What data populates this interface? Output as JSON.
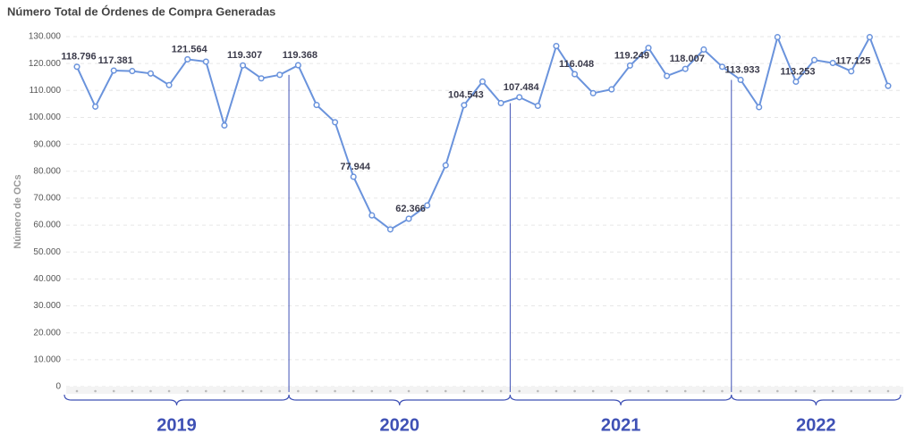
{
  "chart_data": {
    "type": "line",
    "title": "Número Total de Órdenes de Compra Generadas",
    "y_label": "Número de OCs",
    "groups": [
      {
        "label": "2019",
        "size": 12
      },
      {
        "label": "2020",
        "size": 12
      },
      {
        "label": "2021",
        "size": 12
      },
      {
        "label": "2022",
        "size": 9
      }
    ],
    "series": [
      {
        "name": "Órdenes de Compra",
        "color": "#6a93dc",
        "values": [
          118796,
          104000,
          117381,
          117200,
          116300,
          112000,
          121564,
          120700,
          97000,
          119307,
          114500,
          115800,
          119368,
          104600,
          98200,
          77944,
          63600,
          58400,
          62366,
          67300,
          82200,
          104543,
          113300,
          105300,
          107484,
          104300,
          126500,
          116048,
          109000,
          110400,
          119249,
          125800,
          115400,
          118007,
          125200,
          118800,
          113933,
          103800,
          129800,
          113253,
          121300,
          120200,
          117125,
          129800,
          111700
        ],
        "value_labels": [
          "118.796",
          null,
          "117.381",
          null,
          null,
          null,
          "121.564",
          null,
          null,
          "119.307",
          null,
          null,
          "119.368",
          null,
          null,
          "77.944",
          null,
          null,
          "62.366",
          null,
          null,
          "104.543",
          null,
          null,
          "107.484",
          null,
          null,
          "116.048",
          null,
          null,
          "119.249",
          null,
          null,
          "118.007",
          null,
          null,
          "113.933",
          null,
          null,
          "113.253",
          null,
          null,
          "117.125",
          null,
          null
        ]
      }
    ],
    "ylim": [
      0,
      130000
    ],
    "yticks": [
      {
        "value": 0,
        "label": "0"
      },
      {
        "value": 10000,
        "label": "10.000"
      },
      {
        "value": 20000,
        "label": "20.000"
      },
      {
        "value": 30000,
        "label": "30.000"
      },
      {
        "value": 40000,
        "label": "40.000"
      },
      {
        "value": 50000,
        "label": "50.000"
      },
      {
        "value": 60000,
        "label": "60.000"
      },
      {
        "value": 70000,
        "label": "70.000"
      },
      {
        "value": 80000,
        "label": "80.000"
      },
      {
        "value": 90000,
        "label": "90.000"
      },
      {
        "value": 100000,
        "label": "100.000"
      },
      {
        "value": 110000,
        "label": "110.000"
      },
      {
        "value": 120000,
        "label": "120.000"
      },
      {
        "value": 130000,
        "label": "130.000"
      }
    ],
    "grid": true
  }
}
